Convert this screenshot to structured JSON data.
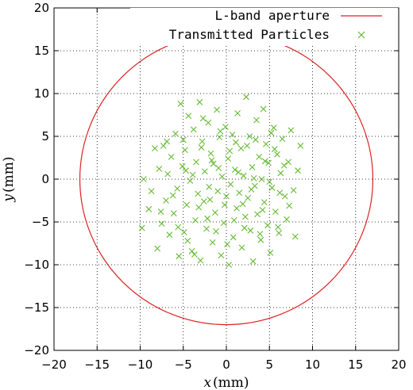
{
  "chart_data": {
    "type": "scatter",
    "xlim": [
      -20,
      20
    ],
    "ylim": [
      -20,
      20
    ],
    "x_ticks": [
      -20,
      -15,
      -10,
      -5,
      0,
      5,
      10,
      15,
      20
    ],
    "y_ticks": [
      -20,
      -15,
      -10,
      -5,
      0,
      5,
      10,
      15,
      20
    ],
    "x_tick_labels": [
      "−20",
      "−15",
      "−10",
      "−5",
      "0",
      "5",
      "10",
      "15",
      "20"
    ],
    "y_tick_labels": [
      "−20",
      "−15",
      "−10",
      "−5",
      "0",
      "5",
      "10",
      "15",
      "20"
    ],
    "xlabel_var": "x",
    "xlabel_unit": "(mm)",
    "ylabel_var": "y",
    "ylabel_unit": "(mm)",
    "grid": "dotted",
    "legend_position": "top-right",
    "series": [
      {
        "name": "L-band aperture",
        "kind": "circle",
        "center": [
          0,
          0
        ],
        "radius": 17,
        "color": "#dd2222"
      },
      {
        "name": "Transmitted Particles",
        "kind": "points",
        "marker": "x",
        "color": "#66bb33",
        "points": [
          [
            -9.8,
            -5.7
          ],
          [
            -9.6,
            0.0
          ],
          [
            -9.0,
            -3.5
          ],
          [
            -8.7,
            -1.4
          ],
          [
            -8.3,
            3.6
          ],
          [
            -8.0,
            -8.1
          ],
          [
            -7.8,
            1.2
          ],
          [
            -7.5,
            -5.2
          ],
          [
            -7.3,
            3.9
          ],
          [
            -7.0,
            -2.5
          ],
          [
            -6.8,
            0.6
          ],
          [
            -6.6,
            -6.5
          ],
          [
            -6.4,
            2.6
          ],
          [
            -6.1,
            -4.0
          ],
          [
            -5.9,
            5.3
          ],
          [
            -5.7,
            -1.1
          ],
          [
            -5.5,
            -9.0
          ],
          [
            -5.3,
            8.8
          ],
          [
            -5.1,
            1.5
          ],
          [
            -4.9,
            -6.2
          ],
          [
            -4.8,
            3.4
          ],
          [
            -4.6,
            -3.0
          ],
          [
            -4.4,
            7.4
          ],
          [
            -4.2,
            -0.2
          ],
          [
            -4.0,
            -8.4
          ],
          [
            -3.8,
            5.8
          ],
          [
            -3.6,
            -4.8
          ],
          [
            -3.5,
            2.0
          ],
          [
            -3.3,
            -1.7
          ],
          [
            -3.1,
            9.0
          ],
          [
            -3.0,
            -9.5
          ],
          [
            -2.8,
            4.4
          ],
          [
            -2.6,
            -2.6
          ],
          [
            -2.5,
            0.9
          ],
          [
            -2.3,
            -5.8
          ],
          [
            -2.1,
            6.6
          ],
          [
            -2.0,
            -0.9
          ],
          [
            -1.8,
            3.0
          ],
          [
            -1.6,
            -7.4
          ],
          [
            -1.5,
            1.8
          ],
          [
            -1.3,
            -3.9
          ],
          [
            -1.1,
            8.1
          ],
          [
            -1.0,
            -1.4
          ],
          [
            -0.8,
            4.9
          ],
          [
            -0.6,
            -8.9
          ],
          [
            -0.5,
            0.3
          ],
          [
            -0.3,
            -5.1
          ],
          [
            -0.1,
            6.1
          ],
          [
            0.0,
            -2.0
          ],
          [
            0.2,
            2.4
          ],
          [
            0.3,
            -10.0
          ],
          [
            0.5,
            -0.6
          ],
          [
            0.7,
            5.2
          ],
          [
            0.8,
            -6.8
          ],
          [
            1.0,
            1.1
          ],
          [
            1.2,
            -3.4
          ],
          [
            1.3,
            7.7
          ],
          [
            1.5,
            -1.6
          ],
          [
            1.7,
            3.6
          ],
          [
            1.8,
            -8.0
          ],
          [
            2.0,
            0.4
          ],
          [
            2.2,
            -4.4
          ],
          [
            2.3,
            9.6
          ],
          [
            2.5,
            -2.2
          ],
          [
            2.7,
            5.0
          ],
          [
            2.8,
            -6.0
          ],
          [
            3.0,
            1.4
          ],
          [
            3.1,
            -9.6
          ],
          [
            3.3,
            -0.8
          ],
          [
            3.5,
            6.9
          ],
          [
            3.6,
            -4.1
          ],
          [
            3.8,
            2.6
          ],
          [
            4.0,
            -7.1
          ],
          [
            4.1,
            0.0
          ],
          [
            4.3,
            8.2
          ],
          [
            4.4,
            -2.7
          ],
          [
            4.6,
            4.1
          ],
          [
            4.8,
            -5.4
          ],
          [
            4.9,
            1.9
          ],
          [
            5.1,
            -8.6
          ],
          [
            5.3,
            -1.0
          ],
          [
            5.5,
            6.0
          ],
          [
            5.7,
            -3.8
          ],
          [
            5.9,
            2.9
          ],
          [
            6.1,
            -6.3
          ],
          [
            6.3,
            0.7
          ],
          [
            6.5,
            4.7
          ],
          [
            6.8,
            -2.0
          ],
          [
            7.0,
            -4.7
          ],
          [
            7.2,
            2.0
          ],
          [
            7.5,
            5.7
          ],
          [
            7.8,
            -1.3
          ],
          [
            8.0,
            -6.7
          ],
          [
            8.3,
            1.0
          ],
          [
            8.6,
            3.9
          ],
          [
            -6.2,
            -1.9
          ],
          [
            -5.0,
            4.6
          ],
          [
            -4.5,
            -7.2
          ],
          [
            -3.9,
            0.5
          ],
          [
            -3.2,
            -3.3
          ],
          [
            -2.7,
            7.1
          ],
          [
            -2.2,
            -4.6
          ],
          [
            -1.7,
            2.2
          ],
          [
            -1.2,
            -6.1
          ],
          [
            -0.7,
            5.6
          ],
          [
            -0.2,
            -3.0
          ],
          [
            0.4,
            3.3
          ],
          [
            0.9,
            -4.8
          ],
          [
            1.4,
            0.8
          ],
          [
            1.9,
            -2.9
          ],
          [
            2.4,
            3.9
          ],
          [
            2.9,
            -1.2
          ],
          [
            3.4,
            4.6
          ],
          [
            3.9,
            -6.4
          ],
          [
            4.5,
            2.1
          ],
          [
            5.0,
            -0.3
          ],
          [
            5.6,
            3.5
          ],
          [
            6.0,
            -5.6
          ],
          [
            6.7,
            1.6
          ],
          [
            7.3,
            -3.1
          ],
          [
            -7.6,
            -3.8
          ],
          [
            -6.9,
            4.4
          ],
          [
            -5.6,
            -5.6
          ],
          [
            -4.7,
            1.0
          ],
          [
            -3.7,
            -8.8
          ],
          [
            -2.9,
            3.7
          ],
          [
            -1.9,
            -2.4
          ],
          [
            -0.9,
            1.3
          ],
          [
            0.1,
            -7.6
          ],
          [
            1.1,
            4.3
          ],
          [
            2.1,
            -5.7
          ],
          [
            3.2,
            0.1
          ],
          [
            4.2,
            -3.6
          ],
          [
            5.2,
            5.4
          ],
          [
            6.2,
            -1.6
          ]
        ]
      }
    ]
  }
}
